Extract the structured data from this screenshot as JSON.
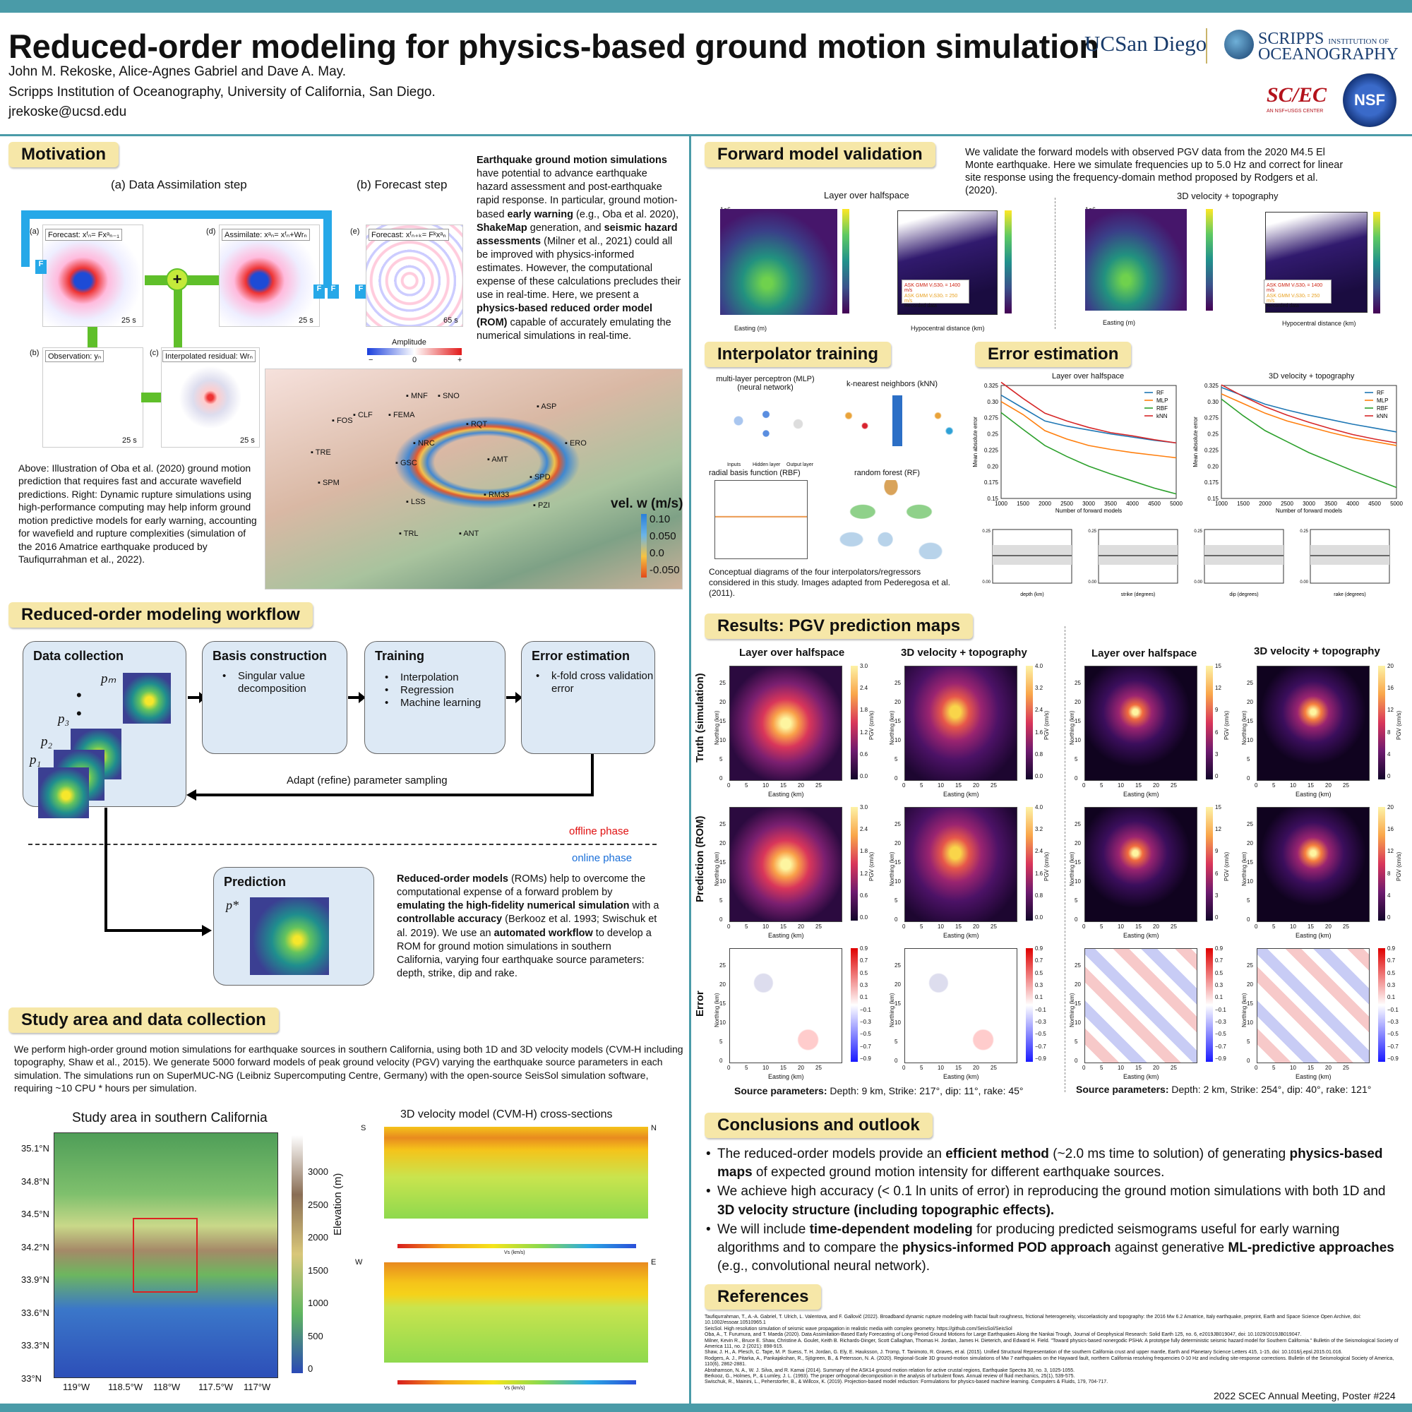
{
  "header": {
    "title": "Reduced-order modeling for physics-based ground motion simulation",
    "authors": "John M. Rekoske, Alice-Agnes Gabriel and Dave A. May.",
    "affiliation": "Scripps Institution of Oceanography, University of California, San Diego.",
    "email": "jrekoske@ucsd.edu",
    "logo_ucsd": "UCSan Diego",
    "logo_scripps_a": "SCRIPPS",
    "logo_scripps_b": "INSTITUTION OF",
    "logo_scripps_c": "OCEANOGRAPHY",
    "logo_scec": "SC/EC",
    "logo_scec_sub": "AN NSF+USGS CENTER",
    "logo_nsf": "NSF"
  },
  "motivation": {
    "title": "Motivation",
    "da_label": "(a) Data Assimilation step",
    "fc_label": "(b) Forecast step",
    "fa": "(a)",
    "forecast": "Forecast: xᶠₙ= Fxᵃₙ₋₁",
    "fd": "(d)",
    "assimilate": "Assimilate: xᵃₙ= xᶠₙ+Wrₙ",
    "fe": "(e)",
    "forecast_e": "Forecast: xᶠₙ₊ₖ= Fᵏxᵃₙ",
    "fb": "(b)",
    "observation": "Observation: yₙ",
    "fc": "(c)",
    "residual": "Interpolated residual: Wrₙ",
    "t25": "25 s",
    "t65": "65 s",
    "F": "F",
    "plus": "+",
    "amplitude": "Amplitude",
    "amp_min": "−",
    "amp_zero": "0",
    "amp_max": "+",
    "p1": "Earthquake ground motion simulations",
    "p2": " have potential to advance earthquake hazard assessment and post-earthquake rapid response. In particular, ground motion-based ",
    "p3": "early warning",
    "p4": " (e.g., Oba et al. 2020), ",
    "p5": "ShakeMap",
    "p6": " generation, and ",
    "p7": "seismic hazard assessments",
    "p8": " (Milner et al., 2021) could all be improved with physics-informed estimates. However, the computational expense of these calculations precludes their use in real-time. Here, we present a ",
    "p9": "physics-based reduced order model (ROM)",
    "p10": " capable of accurately emulating the numerical simulations in real-time.",
    "caption": "Above: Illustration of Oba et al. (2020) ground motion prediction that requires fast and accurate wavefield predictions. Right: Dynamic rupture simulations using high-performance computing may help inform ground motion predictive models for early warning, accounting for wavefield and rupture complexities (simulation of the 2016 Amatrice earthquake produced by Taufiqurrahman et al., 2022).",
    "stations": [
      "MNF",
      "SNO",
      "FOS",
      "CLF",
      "FEMA",
      "RQT",
      "ASP",
      "TRE",
      "NRC",
      "ERO",
      "GSC",
      "AMT",
      "SPD",
      "SPM",
      "LSS",
      "RM33",
      "PZI",
      "TRL",
      "ANT"
    ],
    "vel_title": "vel. w (m/s)",
    "vel_ticks": [
      "0.10",
      "0.050",
      "0.0",
      "-0.050"
    ]
  },
  "workflow": {
    "title": "Reduced-order modeling workflow",
    "data_collection": "Data collection",
    "pm": "pₘ",
    "p3": "p₃",
    "p2": "p₂",
    "p1": "p₁",
    "basis": "Basis construction",
    "basis_items": [
      "Singular value decomposition"
    ],
    "training": "Training",
    "training_items": [
      "Interpolation",
      "Regression",
      "Machine learning"
    ],
    "error": "Error estimation",
    "error_items": [
      "k-fold cross validation error"
    ],
    "adapt": "Adapt (refine) parameter sampling",
    "offline": "offline phase",
    "online": "online phase",
    "prediction": "Prediction",
    "pstar": "p*",
    "rom_a": "Reduced-order models",
    "rom_b": " (ROMs) help to overcome the computational expense of a forward problem by ",
    "rom_c": "emulating the high-fidelity numerical simulation",
    "rom_d": " with a ",
    "rom_e": "controllable accuracy",
    "rom_f": " (Berkooz et al. 1993; Swischuk et al. 2019). We use an ",
    "rom_g": "automated workflow",
    "rom_h": " to develop a ROM for ground motion simulations in southern California, varying four earthquake source parameters: depth, strike, dip and rake."
  },
  "study": {
    "title": "Study area and data collection",
    "text": "We perform high-order ground motion simulations for earthquake sources in southern California, using both 1D and 3D velocity models (CVM-H including topography, Shaw et al., 2015). We generate 5000 forward models of peak ground velocity (PGV) varying the earthquake source parameters in each simulation. The simulations run on SuperMUC-NG (Leibniz Supercomputing Centre, Germany) with the open-source SeisSol simulation software, requiring ~10 CPU * hours per simulation.",
    "map_title": "Study area in southern California",
    "lat": [
      "35.1°N",
      "34.8°N",
      "34.5°N",
      "34.2°N",
      "33.9°N",
      "33.6°N",
      "33.3°N",
      "33°N"
    ],
    "lon": [
      "119°W",
      "118.5°W",
      "118°W",
      "117.5°W",
      "117°W"
    ],
    "elev_label": "Elevation (m)",
    "elev_ticks": [
      "3000",
      "2500",
      "2000",
      "1500",
      "1000",
      "500",
      "0"
    ],
    "cvm_title": "3D velocity model (CVM-H) cross-sections",
    "S": "S",
    "N": "N",
    "W": "W",
    "E": "E",
    "vs": "Vs (km/s)"
  },
  "forward": {
    "title": "Forward model validation",
    "text": "We validate the forward models with observed PGV data from the 2020 M4.5 El Monte earthquake. Here we simulate frequencies up to 5.0 Hz and correct for linear site response using the frequency-domain method proposed by Rodgers et al. (2020).",
    "lh": "Layer over halfspace",
    "v3d": "3D velocity + topography",
    "northing": "Northing (m)",
    "easting": "Easting (m)",
    "pgv": "PGV (m/s)",
    "hypo": "Hypocentral distance (km)",
    "density": "Simulation probability density",
    "leg1": "ASK GMM V₍S30₎ = 1400 m/s",
    "leg2": "ASK GMM V₍S30₎ = 250 m/s",
    "leg3": "Recorded data",
    "e6": "1e6",
    "e5": "1e5"
  },
  "interp": {
    "title": "Interpolator training",
    "mlp": "multi-layer perceptron (MLP) (neural network)",
    "knn": "k-nearest neighbors (kNN)",
    "rbf": "radial basis function (RBF)",
    "rf": "random forest (RF)",
    "inputs": "Inputs",
    "hidden": "Hidden layer",
    "output": "Output layer",
    "caption": "Conceptual diagrams of the four interpolators/regressors considered in this study. Images adapted from Pederegosa et al. (2011)."
  },
  "errest": {
    "title": "Error estimation",
    "lh": "Layer over halfspace",
    "v3d": "3D velocity + topography",
    "xlabel": "Number of forward models",
    "ylabel": "Mean absolute error",
    "legend": [
      "RF",
      "MLP",
      "RBF",
      "kNN"
    ],
    "sub_x": [
      "depth (km)",
      "strike (degrees)",
      "dip (degrees)",
      "rake (degrees)"
    ]
  },
  "results": {
    "title": "Results: PGV prediction maps",
    "lh": "Layer over halfspace",
    "v3d": "3D velocity + topography",
    "truth": "Truth (simulation)",
    "pred": "Prediction (ROM)",
    "error": "Error",
    "northing": "Northing (km)",
    "easting": "Easting (km)",
    "pgv": "PGV (cm/s)",
    "src_label": "Source parameters:",
    "src1": " Depth: 9 km, Strike: 217°, dip: 11°, rake: 45°",
    "src2": " Depth: 2 km, Strike: 254°, dip: 40°, rake: 121°",
    "cb1": [
      "3.0",
      "2.4",
      "1.8",
      "1.2",
      "0.6",
      "0.0"
    ],
    "cb2": [
      "4.0",
      "3.2",
      "2.4",
      "1.6",
      "0.8",
      "0.0"
    ],
    "cb3": [
      "15",
      "12",
      "9",
      "6",
      "3",
      "0"
    ],
    "cb4": [
      "20",
      "16",
      "12",
      "8",
      "4",
      "0"
    ],
    "cbe": [
      "0.9",
      "0.7",
      "0.5",
      "0.3",
      "0.1",
      "−0.1",
      "−0.3",
      "−0.5",
      "−0.7",
      "−0.9"
    ]
  },
  "conclusions": {
    "title": "Conclusions and outlook",
    "b1a": "The reduced-order models provide an ",
    "b1b": "efficient method",
    "b1c": " (~2.0 ms time to solution) of generating ",
    "b1d": "physics-based maps",
    "b1e": " of expected ground motion intensity for different earthquake sources.",
    "b2a": "We achieve high accuracy (< 0.1 ln units of error) in reproducing the ground motion simulations with both 1D and ",
    "b2b": "3D velocity structure (including topographic effects).",
    "b3a": "We will include ",
    "b3b": "time-dependent modeling",
    "b3c": " for producing predicted seismograms useful for early warning algorithms and to compare the ",
    "b3d": "physics-informed POD approach",
    "b3e": " against generative ",
    "b3f": "ML-predictive approaches",
    "b3g": " (e.g., convolutional neural network)."
  },
  "references": {
    "title": "References",
    "items": [
      "Taufiqurrahman, T., A.-A. Gabriel, T. Ulrich, L. Valentova, and F. Gallovič (2022). Broadband dynamic rupture modeling with fractal fault roughness, frictional heterogeneity, viscoelasticity and topography: the 2016 Mw 6.2 Amatrice, Italy earthquake, preprint, Earth and Space Science Open Archive, doi: 10.1002/essoar.10510965.1",
      "SeisSol. High resolution simulation of seismic wave propagation in realistic media with complex geometry. https://github.com/SeisSol/SeisSol",
      "Oba, A., T. Furumura, and T. Maeda (2020). Data Assimilation-Based Early Forecasting of Long-Period Ground Motions for Large Earthquakes Along the Nankai Trough, Journal of Geophysical Research: Solid Earth 125, no. 6, e2019JB019047, doi: 10.1029/2019JB019047.",
      "Milner, Kevin R., Bruce E. Shaw, Christine A. Goulet, Keith B. Richards-Dinger, Scott Callaghan, Thomas H. Jordan, James H. Dieterich, and Edward H. Field. \"Toward physics-based nonergodic PSHA: A prototype fully deterministic seismic hazard model for Southern California.\" Bulletin of the Seismological Society of America 111, no. 2 (2021): 898-915.",
      "Shaw, J. H., A. Plesch, C. Tape, M. P. Suess, T. H. Jordan, G. Ely, E. Hauksson, J. Tromp, T. Tanimoto, R. Graves, et al. (2015). Unified Structural Representation of the southern California crust and upper mantle, Earth and Planetary Science Letters 415, 1-15, doi: 10.1016/j.epsl.2015.01.016.",
      "Rodgers, A. J., Pitarka, A., Pankajakshan, R., Sjögreen, B., & Petersson, N. A. (2020). Regional-Scale 3D ground-motion simulations of Mw 7 earthquakes on the Hayward fault, northern California resolving frequencies 0-10 Hz and including site-response corrections. Bulletin of the Seismological Society of America, 110(6), 2862-2881.",
      "Abrahamson, N. A., W. J. Silva, and R. Kamai (2014). Summary of the ASK14 ground motion relation for active crustal regions, Earthquake Spectra 30, no. 3, 1025-1055.",
      "Berkooz, G., Holmes, P., & Lumley, J. L. (1993). The proper orthogonal decomposition in the analysis of turbulent flows. Annual review of fluid mechanics, 25(1), 539-575.",
      "Swischuk, R., Mainini, L., Peherstorfer, B., & Willcox, K. (2019). Projection-based model reduction: Formulations for physics-based machine learning. Computers & Fluids, 179, 704-717."
    ]
  },
  "footer": {
    "meeting": "2022 SCEC Annual Meeting, Poster #224"
  }
}
